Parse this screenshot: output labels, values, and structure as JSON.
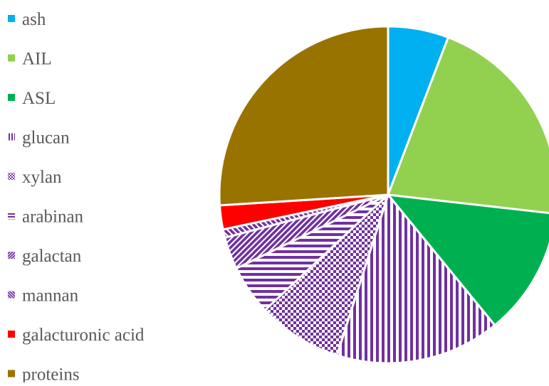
{
  "chart_data": {
    "type": "pie",
    "title": "",
    "legend_position": "left",
    "start_angle_deg": 0,
    "direction": "clockwise",
    "slices": [
      {
        "label": "ash",
        "value": 5.8,
        "color": "#00b0f0",
        "pattern": "solid"
      },
      {
        "label": "AIL",
        "value": 21.0,
        "color": "#92d050",
        "pattern": "solid"
      },
      {
        "label": "ASL",
        "value": 12.3,
        "color": "#00b050",
        "pattern": "solid"
      },
      {
        "label": "glucan",
        "value": 15.8,
        "color": "#7030a0",
        "pattern": "vertical-stripes"
      },
      {
        "label": "xylan",
        "value": 8.1,
        "color": "#7030a0",
        "pattern": "checker"
      },
      {
        "label": "arabinan",
        "value": 4.8,
        "color": "#7030a0",
        "pattern": "horizontal-stripes"
      },
      {
        "label": "galactan",
        "value": 3.1,
        "color": "#7030a0",
        "pattern": "diagonal-up"
      },
      {
        "label": "mannan",
        "value": 0.8,
        "color": "#7030a0",
        "pattern": "diagonal-down"
      },
      {
        "label": "galacturonic acid",
        "value": 2.3,
        "color": "#ff0000",
        "pattern": "solid"
      },
      {
        "label": "proteins",
        "value": 26.0,
        "color": "#997300",
        "pattern": "solid"
      }
    ]
  }
}
